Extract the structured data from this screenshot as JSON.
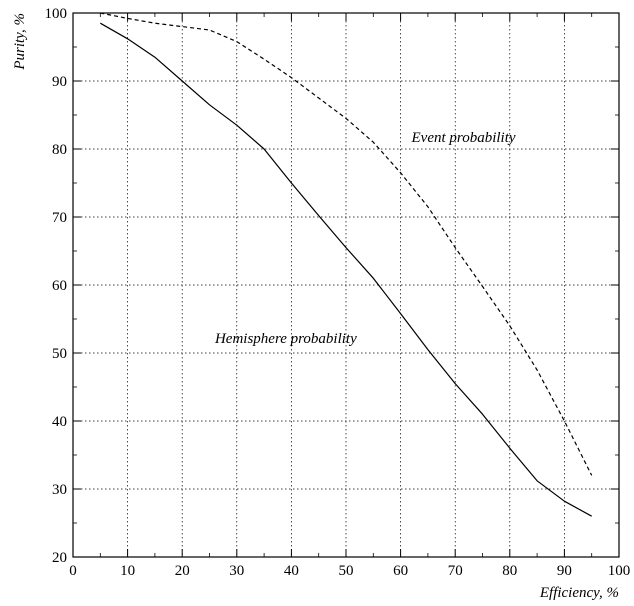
{
  "chart_data": {
    "type": "line",
    "xlabel": "Efficiency, %",
    "ylabel": "Purity, %",
    "xlim": [
      0,
      100
    ],
    "ylim": [
      20,
      100
    ],
    "xticks": [
      0,
      10,
      20,
      30,
      40,
      50,
      60,
      70,
      80,
      90,
      100
    ],
    "yticks": [
      20,
      30,
      40,
      50,
      60,
      70,
      80,
      90,
      100
    ],
    "grid": true,
    "series": [
      {
        "name": "Hemisphere probability",
        "style": "solid",
        "color": "#000000",
        "x": [
          5,
          10,
          15,
          20,
          25,
          30,
          35,
          40,
          45,
          50,
          55,
          60,
          65,
          70,
          75,
          80,
          85,
          90,
          95
        ],
        "y": [
          98.5,
          96.2,
          93.5,
          90.0,
          86.5,
          83.5,
          80.0,
          75.0,
          70.2,
          65.5,
          61.0,
          55.8,
          50.5,
          45.5,
          41.0,
          36.0,
          31.2,
          28.2,
          26.0
        ]
      },
      {
        "name": "Event probability",
        "style": "dashed",
        "color": "#000000",
        "x": [
          5,
          10,
          15,
          20,
          25,
          30,
          35,
          40,
          45,
          50,
          55,
          60,
          65,
          70,
          75,
          80,
          85,
          90,
          95
        ],
        "y": [
          100,
          99.2,
          98.5,
          98.0,
          97.5,
          95.8,
          93.2,
          90.5,
          87.5,
          84.5,
          81.0,
          76.5,
          71.5,
          65.5,
          59.8,
          54.0,
          47.5,
          40.0,
          32.0
        ]
      }
    ],
    "annotations": [
      {
        "text": "Event probability",
        "x": 62,
        "y": 81
      },
      {
        "text": "Hemisphere probability",
        "x": 26,
        "y": 51.5
      }
    ]
  }
}
